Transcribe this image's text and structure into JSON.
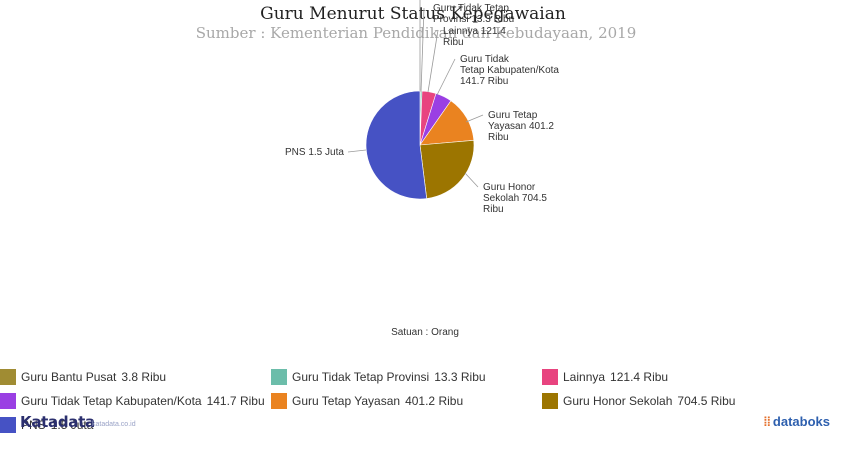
{
  "header": {
    "title": "Guru Menurut Status Kepegawaian",
    "subtitle": "Sumber : Kementerian Pendidikan dan Kebudayaan, 2019"
  },
  "unit_note": "Satuan : Orang",
  "chart_data": {
    "type": "pie",
    "title": "Guru Menurut Status Kepegawaian",
    "subtitle": "Sumber : Kementerian Pendidikan dan Kebudayaan, 2019",
    "unit": "Orang",
    "slices": [
      {
        "name": "Guru Bantu Pusat",
        "value": 3800,
        "display": "3.8 Ribu",
        "color": "#a08c33"
      },
      {
        "name": "Guru Tidak Tetap Provinsi",
        "value": 13300,
        "display": "13.3 Ribu",
        "color": "#6cbdaa"
      },
      {
        "name": "Lainnya",
        "value": 121400,
        "display": "121.4 Ribu",
        "color": "#e8447f"
      },
      {
        "name": "Guru Tidak Tetap Kabupaten/Kota",
        "value": 141700,
        "display": "141.7 Ribu",
        "color": "#9a3fe3"
      },
      {
        "name": "Guru Tetap Yayasan",
        "value": 401200,
        "display": "401.2 Ribu",
        "color": "#ea8320"
      },
      {
        "name": "Guru Honor Sekolah",
        "value": 704500,
        "display": "704.5 Ribu",
        "color": "#9c7500"
      },
      {
        "name": "PNS",
        "value": 1500000,
        "display": "1.5 Juta",
        "color": "#4652c4"
      }
    ],
    "legend_position": "bottom"
  },
  "branding": {
    "left": "Katadata",
    "left_sub": "katadata.co.id",
    "right": "databoks"
  }
}
